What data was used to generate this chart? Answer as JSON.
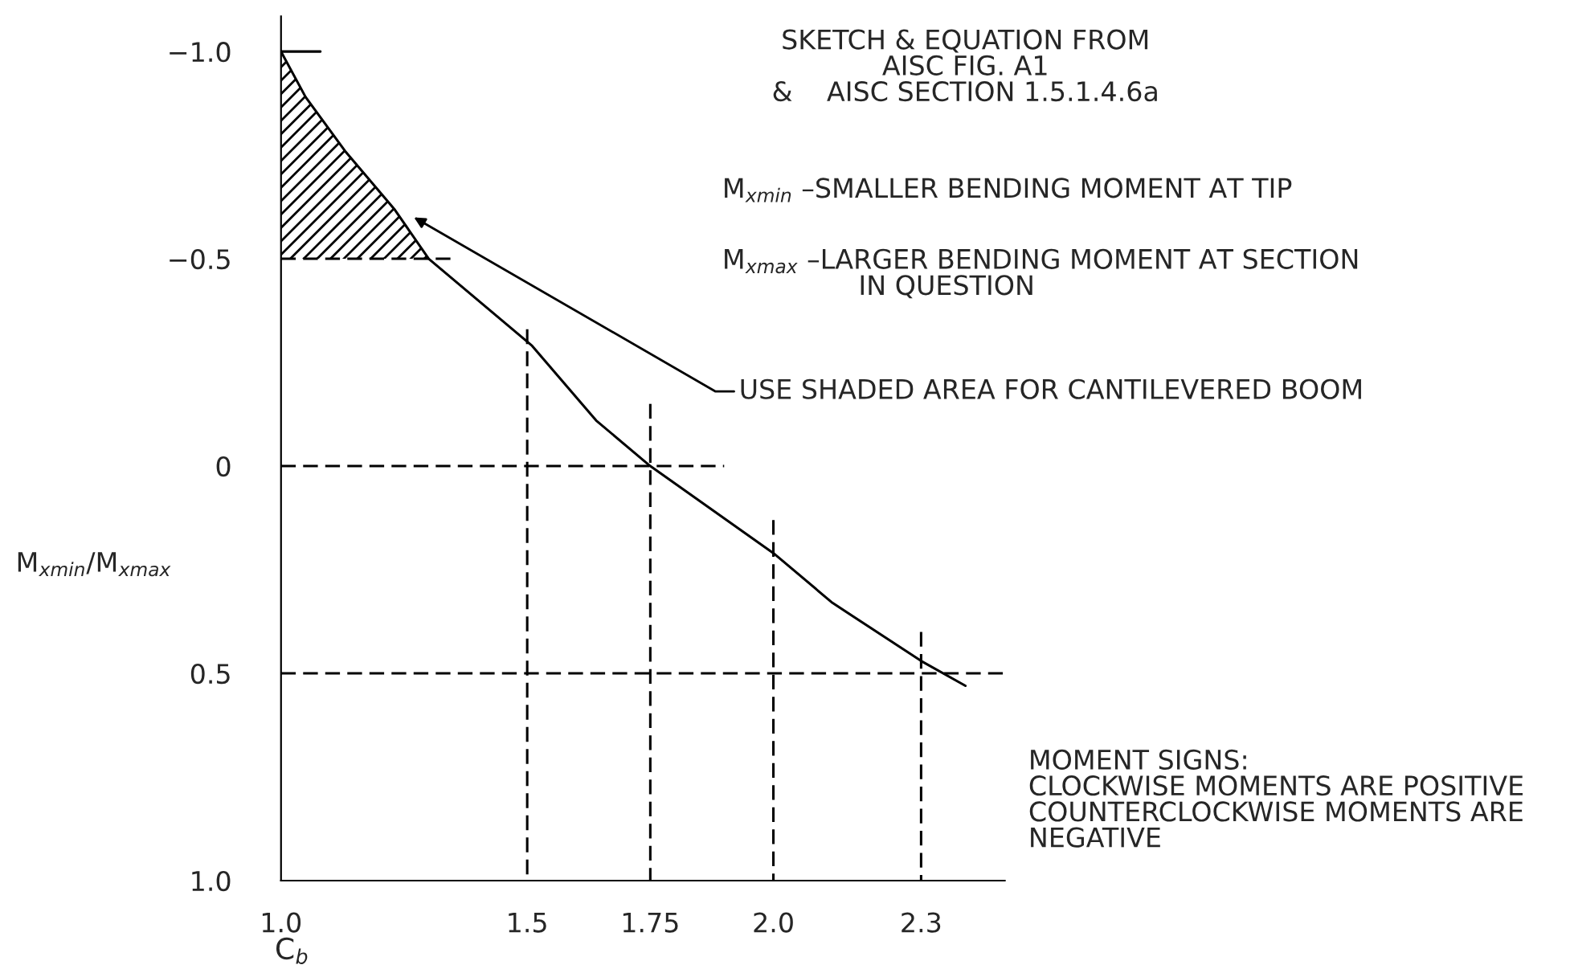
{
  "chart_data": {
    "type": "line",
    "xlabel": "C$_{b}$",
    "ylabel": "M$_{xmin}$/M$_{xmax}$",
    "xlim": [
      1.0,
      2.47
    ],
    "ylim": [
      1.0,
      -1.085
    ],
    "xticks": [
      {
        "value": 1.0,
        "label": "1.0"
      },
      1.5,
      1.75,
      {
        "value": 2.0,
        "label": "2.0"
      },
      2.3
    ],
    "yticks": [
      {
        "value": -1.0,
        "label": "−1.0"
      },
      {
        "value": -0.5,
        "label": "−0.5"
      },
      0,
      0.5,
      {
        "value": 1.0,
        "label": "1.0"
      }
    ],
    "grid": false,
    "legend": false,
    "marker": "none",
    "series": [
      {
        "color": "#000000",
        "line_style": "solid",
        "x": [
          1.0,
          1.05,
          1.13,
          1.23,
          1.3,
          1.51,
          1.64,
          1.75,
          2.0,
          2.12,
          2.3,
          2.39
        ],
        "values": [
          -1.0,
          -0.89,
          -0.76,
          -0.62,
          -0.5,
          -0.29,
          -0.11,
          0,
          0.21,
          0.33,
          0.47,
          0.53
        ]
      },
      {
        "color": "#000000",
        "line_style": "solid",
        "x": [
          1.0,
          1.08
        ],
        "values": [
          -1.0,
          -1.0
        ]
      },
      {
        "color": "#000000",
        "line_style": "dashed",
        "x": [
          1.0,
          1.35
        ],
        "values": [
          -0.5,
          -0.5
        ]
      },
      {
        "color": "#000000",
        "line_style": "dashed",
        "x": [
          1.0,
          1.9
        ],
        "values": [
          0,
          0
        ]
      },
      {
        "color": "#000000",
        "line_style": "dashed",
        "x": [
          1.0,
          2.47
        ],
        "values": [
          0.5,
          0.5
        ]
      },
      {
        "color": "#000000",
        "line_style": "dashed",
        "x": [
          1.5,
          1.5
        ],
        "values": [
          -0.33,
          1.0
        ]
      },
      {
        "color": "#000000",
        "line_style": "dashed",
        "x": [
          1.75,
          1.75
        ],
        "values": [
          -0.15,
          1.0
        ]
      },
      {
        "color": "#000000",
        "line_style": "dashed",
        "x": [
          2.0,
          2.0
        ],
        "values": [
          0.13,
          1.0
        ]
      },
      {
        "color": "#000000",
        "line_style": "dashed",
        "x": [
          2.3,
          2.3
        ],
        "values": [
          0.4,
          1.0
        ]
      }
    ],
    "bands": [
      {
        "axis": "y",
        "from": -1.0,
        "to": -0.5,
        "color": "#000000"
      }
    ],
    "annotations": [
      "SKETCH & EQUATION FROM\nAISC FIG. A1\n&    AISC SECTION 1.5.1.4.6a",
      "M$_{xmin}$ –SMALLER BENDING MOMENT AT TIP",
      "M$_{xmax}$ –LARGER BENDING MOMENT AT SECTION\n                IN QUESTION",
      "USE SHADED AREA FOR CANTILEVERED BOOM",
      "MOMENT SIGNS:\nCLOCKWISE MOMENTS ARE POSITIVE\nCOUNTERCLOCKWISE MOMENTS ARE\nNEGATIVE"
    ]
  }
}
